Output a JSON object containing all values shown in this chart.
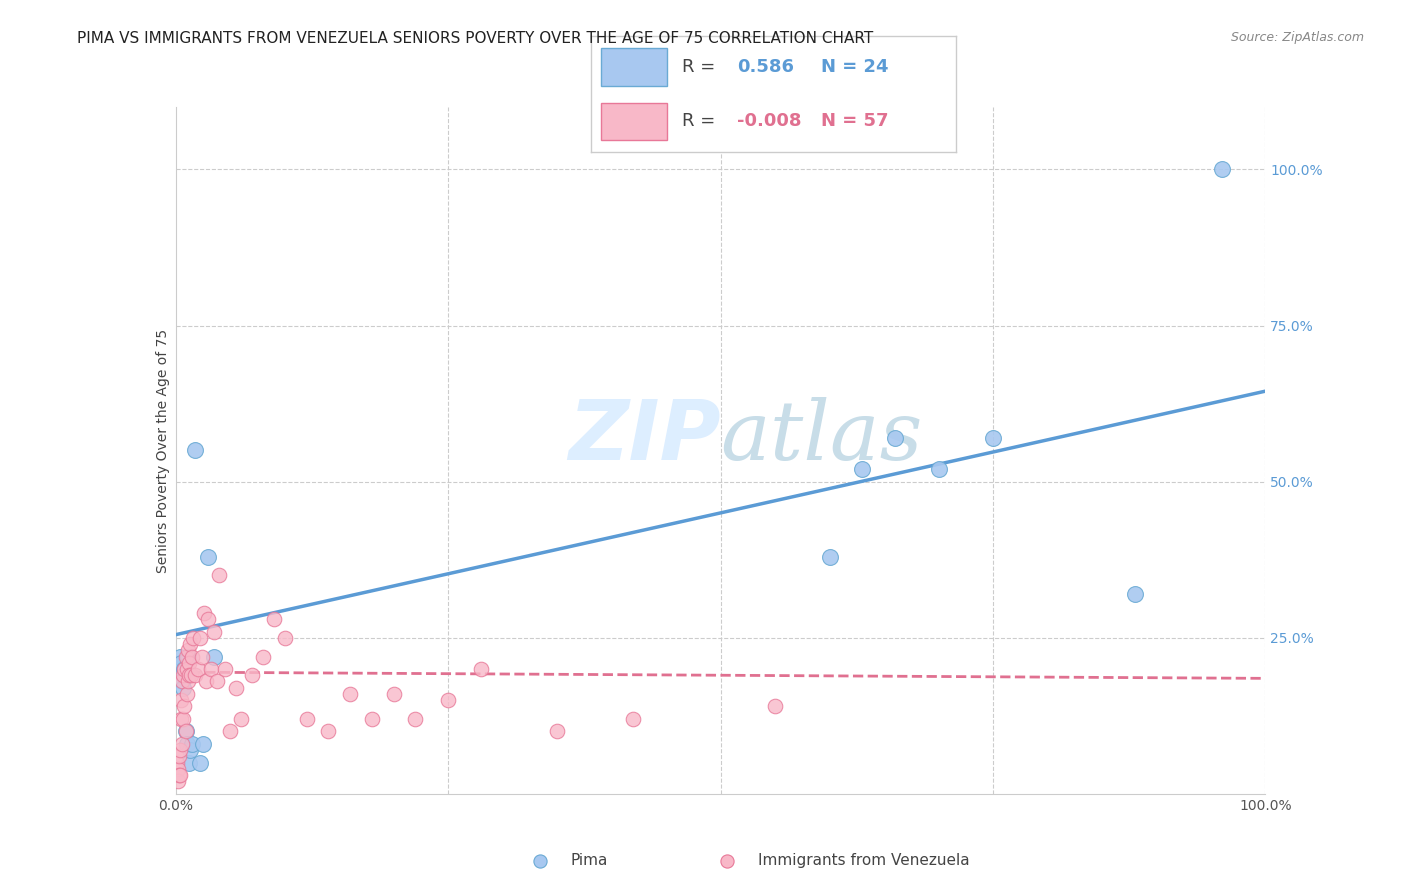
{
  "title": "PIMA VS IMMIGRANTS FROM VENEZUELA SENIORS POVERTY OVER THE AGE OF 75 CORRELATION CHART",
  "source": "Source: ZipAtlas.com",
  "ylabel": "Seniors Poverty Over the Age of 75",
  "pima_R": "0.586",
  "pima_N": "24",
  "venezuela_R": "-0.008",
  "venezuela_N": "57",
  "pima_color": "#a8c8f0",
  "pima_edge_color": "#6aaad4",
  "pima_line_color": "#5b9bd5",
  "venezuela_color": "#f8b8c8",
  "venezuela_edge_color": "#e87898",
  "venezuela_line_color": "#e07090",
  "watermark_color": "#ddeeff",
  "legend_label_pima": "Pima",
  "legend_label_venezuela": "Immigrants from Venezuela",
  "background_color": "#ffffff",
  "grid_color": "#cccccc",
  "pima_x": [
    0.003,
    0.004,
    0.005,
    0.006,
    0.007,
    0.008,
    0.009,
    0.01,
    0.011,
    0.012,
    0.013,
    0.015,
    0.018,
    0.022,
    0.025,
    0.03,
    0.035,
    0.6,
    0.63,
    0.66,
    0.7,
    0.75,
    0.88,
    0.96
  ],
  "pima_y": [
    0.2,
    0.22,
    0.21,
    0.18,
    0.17,
    0.2,
    0.1,
    0.08,
    0.22,
    0.05,
    0.07,
    0.08,
    0.55,
    0.05,
    0.08,
    0.38,
    0.22,
    0.38,
    0.52,
    0.57,
    0.52,
    0.57,
    0.32,
    1.0
  ],
  "venezuela_x": [
    0.001,
    0.002,
    0.002,
    0.003,
    0.003,
    0.004,
    0.004,
    0.005,
    0.005,
    0.006,
    0.006,
    0.007,
    0.007,
    0.008,
    0.008,
    0.009,
    0.009,
    0.01,
    0.01,
    0.011,
    0.011,
    0.012,
    0.012,
    0.013,
    0.014,
    0.015,
    0.016,
    0.018,
    0.02,
    0.022,
    0.024,
    0.026,
    0.028,
    0.03,
    0.032,
    0.035,
    0.038,
    0.04,
    0.045,
    0.05,
    0.055,
    0.06,
    0.07,
    0.08,
    0.09,
    0.1,
    0.12,
    0.14,
    0.16,
    0.18,
    0.2,
    0.22,
    0.25,
    0.28,
    0.35,
    0.42,
    0.55
  ],
  "venezuela_y": [
    0.05,
    0.04,
    0.02,
    0.06,
    0.03,
    0.07,
    0.03,
    0.12,
    0.15,
    0.08,
    0.18,
    0.12,
    0.19,
    0.14,
    0.2,
    0.1,
    0.22,
    0.16,
    0.2,
    0.18,
    0.23,
    0.21,
    0.19,
    0.24,
    0.19,
    0.22,
    0.25,
    0.19,
    0.2,
    0.25,
    0.22,
    0.29,
    0.18,
    0.28,
    0.2,
    0.26,
    0.18,
    0.35,
    0.2,
    0.1,
    0.17,
    0.12,
    0.19,
    0.22,
    0.28,
    0.25,
    0.12,
    0.1,
    0.16,
    0.12,
    0.16,
    0.12,
    0.15,
    0.2,
    0.1,
    0.12,
    0.14
  ],
  "pima_line_y0": 0.255,
  "pima_line_y1": 0.645,
  "venezuela_line_y0": 0.195,
  "venezuela_line_y1": 0.185,
  "xlim": [
    0.0,
    1.0
  ],
  "ylim": [
    0.0,
    1.1
  ],
  "title_fontsize": 11,
  "axis_label_fontsize": 10,
  "tick_fontsize": 10,
  "r_n_fontsize": 13
}
